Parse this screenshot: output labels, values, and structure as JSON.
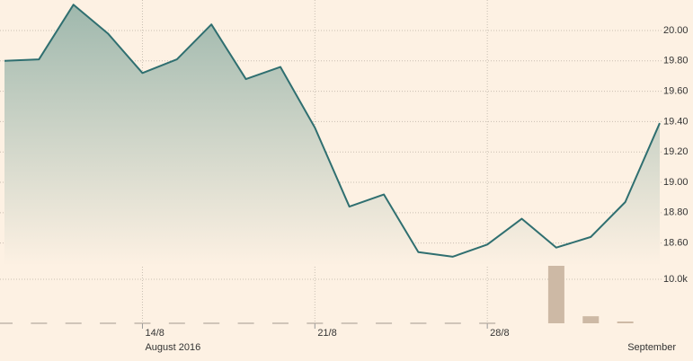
{
  "chart_data": {
    "type": "line",
    "categories": [
      null,
      null,
      null,
      null,
      "14/8",
      null,
      null,
      null,
      null,
      "21/8",
      null,
      null,
      null,
      null,
      "28/8",
      null,
      null,
      null,
      null,
      null
    ],
    "period_labels": [
      {
        "index": 4,
        "label": "August 2016"
      },
      {
        "index": 19,
        "label": "September"
      }
    ],
    "series": [
      {
        "color": "#2f6f70",
        "values": [
          19.8,
          19.81,
          20.17,
          19.98,
          19.72,
          19.81,
          20.04,
          19.68,
          19.76,
          19.36,
          18.84,
          18.92,
          18.54,
          18.51,
          18.59,
          18.76,
          18.57,
          18.64,
          18.87,
          19.39
        ]
      },
      {
        "color": "#cdb9a5",
        "axis": "y2",
        "type": "bar",
        "values": [
          0,
          0,
          0,
          0,
          0,
          0,
          0,
          0,
          0,
          0,
          0,
          0,
          0,
          0,
          0,
          null,
          14300,
          1600,
          400,
          null
        ]
      }
    ],
    "ylim": [
      18.45,
      20.2
    ],
    "yticks": [
      {
        "value": 18.6,
        "label": "18.60"
      },
      {
        "value": 18.8,
        "label": "18.80"
      },
      {
        "value": 19.0,
        "label": "19.00"
      },
      {
        "value": 19.2,
        "label": "19.20"
      },
      {
        "value": 19.4,
        "label": "19.40"
      },
      {
        "value": 19.6,
        "label": "19.60"
      },
      {
        "value": 19.8,
        "label": "19.80"
      },
      {
        "value": 20.0,
        "label": "20.00"
      }
    ],
    "y2lim": [
      0,
      15000
    ],
    "y2ticks": [
      {
        "value": 10000,
        "label": "10.0k"
      }
    ],
    "grid": true
  }
}
